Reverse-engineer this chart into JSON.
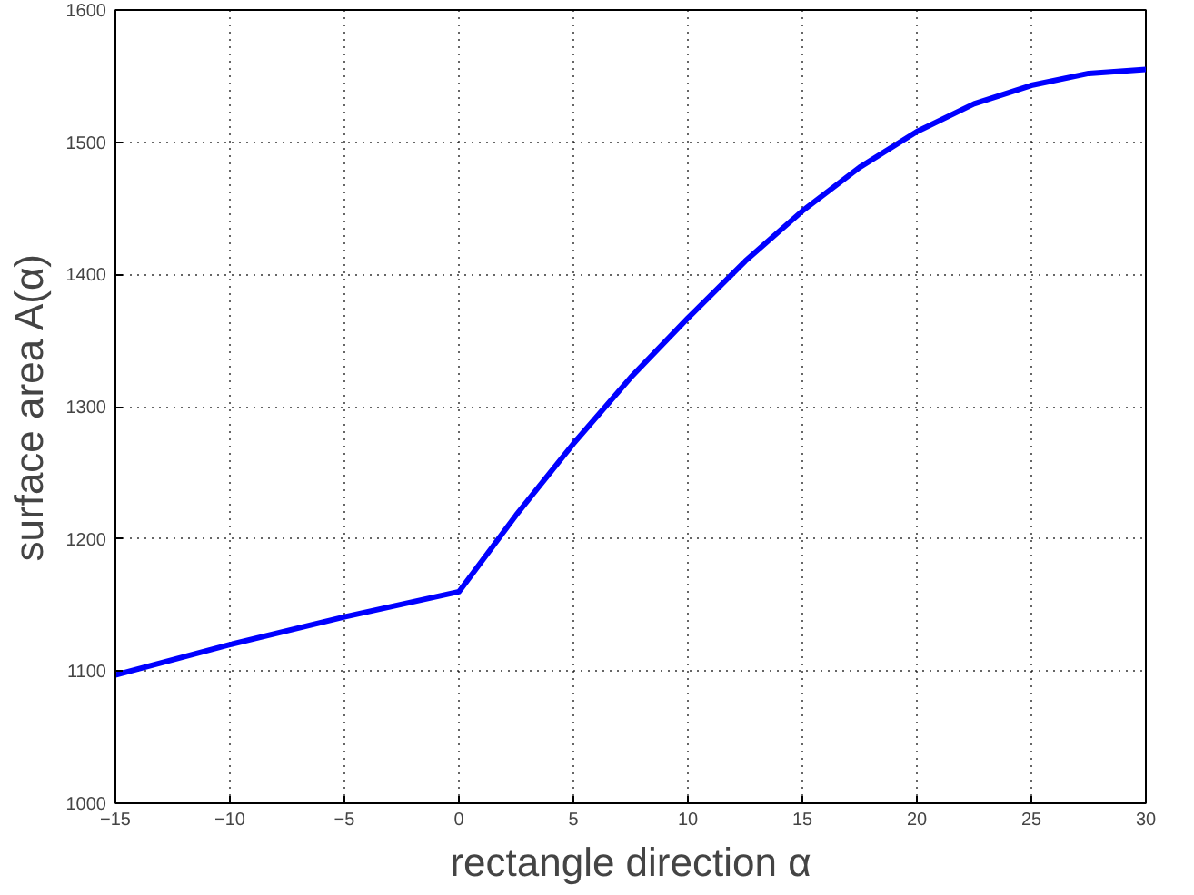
{
  "chart_data": {
    "type": "line",
    "xlabel": "rectangle direction α",
    "ylabel": "surface area A(α)",
    "x": [
      -15,
      -10,
      -5,
      0,
      2.5,
      5,
      7.5,
      10,
      12.5,
      15,
      17.5,
      20,
      22.5,
      25,
      27.5,
      30
    ],
    "series": [
      {
        "color": "#0000ff",
        "values": [
          1097,
          1120,
          1141,
          1160,
          1218,
          1272,
          1322,
          1367,
          1410,
          1448,
          1481,
          1508,
          1529,
          1543,
          1552,
          1555
        ]
      }
    ],
    "xlim": [
      -15,
      30
    ],
    "ylim": [
      1000,
      1600
    ],
    "xticks": [
      -15,
      -10,
      -5,
      0,
      5,
      10,
      15,
      20,
      25,
      30
    ],
    "yticks": [
      1000,
      1100,
      1200,
      1300,
      1400,
      1500,
      1600
    ],
    "grid": true,
    "line_style": "solid",
    "marker": "none"
  }
}
